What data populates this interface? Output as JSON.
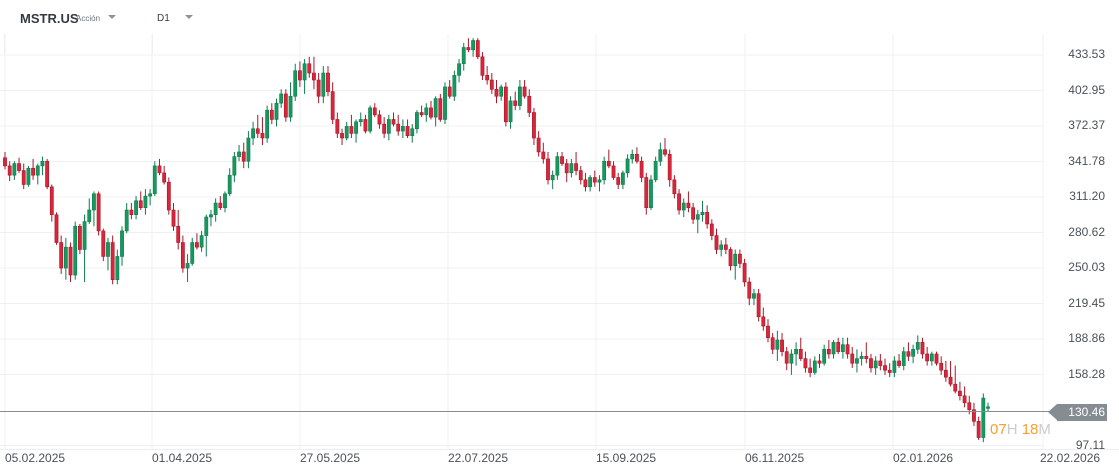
{
  "header": {
    "symbol": "MSTR.US",
    "asset_type": "Acción",
    "timeframe": "D1"
  },
  "price_axis": {
    "labels": [
      "433.53",
      "402.95",
      "372.37",
      "341.78",
      "311.20",
      "280.62",
      "250.03",
      "219.45",
      "188.86",
      "158.28",
      "97.11"
    ],
    "current_price": "130.46"
  },
  "time_axis": {
    "labels": [
      "05.02.2025",
      "01.04.2025",
      "27.05.2025",
      "22.07.2025",
      "15.09.2025",
      "06.11.2025",
      "02.01.2026",
      "22.02.2026"
    ]
  },
  "countdown": {
    "hours": "07",
    "hours_unit": "H",
    "minutes": "18",
    "minutes_unit": "M"
  },
  "colors": {
    "up": "#0f7b4f",
    "up_fill": "#16995f",
    "down": "#a8172a",
    "down_fill": "#d9263a",
    "grid": "#f0f0f0",
    "price_line": "#858c92",
    "countdown": "#f7a12a"
  },
  "chart_data": {
    "type": "candlestick",
    "title": "MSTR.US Acción D1",
    "xlabel": "",
    "ylabel": "",
    "ylim": [
      97.11,
      450
    ],
    "grid": true,
    "current_price": 130.46,
    "x_ticks": [
      "05.02.2025",
      "01.04.2025",
      "27.05.2025",
      "22.07.2025",
      "15.09.2025",
      "06.11.2025",
      "02.01.2026",
      "22.02.2026"
    ],
    "y_ticks": [
      97.11,
      158.28,
      188.86,
      219.45,
      250.03,
      280.62,
      311.2,
      341.78,
      372.37,
      402.95,
      433.53
    ],
    "ohlc": [
      [
        345,
        350,
        335,
        338
      ],
      [
        338,
        342,
        325,
        330
      ],
      [
        330,
        342,
        326,
        340
      ],
      [
        340,
        345,
        332,
        334
      ],
      [
        334,
        340,
        318,
        322
      ],
      [
        322,
        338,
        320,
        336
      ],
      [
        336,
        344,
        326,
        330
      ],
      [
        330,
        340,
        322,
        338
      ],
      [
        338,
        346,
        330,
        342
      ],
      [
        342,
        344,
        318,
        320
      ],
      [
        320,
        322,
        290,
        296
      ],
      [
        296,
        298,
        270,
        272
      ],
      [
        272,
        278,
        245,
        250
      ],
      [
        250,
        276,
        240,
        268
      ],
      [
        268,
        272,
        238,
        244
      ],
      [
        244,
        290,
        240,
        286
      ],
      [
        286,
        288,
        262,
        266
      ],
      [
        266,
        296,
        238,
        290
      ],
      [
        290,
        310,
        288,
        300
      ],
      [
        300,
        316,
        286,
        314
      ],
      [
        314,
        316,
        278,
        282
      ],
      [
        282,
        284,
        256,
        260
      ],
      [
        260,
        276,
        248,
        272
      ],
      [
        272,
        278,
        236,
        240
      ],
      [
        240,
        266,
        236,
        260
      ],
      [
        260,
        286,
        252,
        282
      ],
      [
        282,
        306,
        280,
        300
      ],
      [
        300,
        306,
        292,
        296
      ],
      [
        296,
        312,
        292,
        308
      ],
      [
        308,
        316,
        300,
        302
      ],
      [
        302,
        318,
        296,
        312
      ],
      [
        312,
        318,
        304,
        314
      ],
      [
        314,
        342,
        312,
        338
      ],
      [
        338,
        344,
        330,
        332
      ],
      [
        332,
        338,
        322,
        324
      ],
      [
        324,
        328,
        296,
        300
      ],
      [
        300,
        306,
        282,
        286
      ],
      [
        286,
        300,
        266,
        272
      ],
      [
        272,
        278,
        246,
        250
      ],
      [
        250,
        262,
        238,
        254
      ],
      [
        254,
        276,
        252,
        272
      ],
      [
        272,
        280,
        266,
        268
      ],
      [
        268,
        282,
        264,
        278
      ],
      [
        278,
        296,
        260,
        294
      ],
      [
        294,
        300,
        286,
        296
      ],
      [
        296,
        310,
        290,
        306
      ],
      [
        306,
        312,
        300,
        302
      ],
      [
        302,
        316,
        298,
        314
      ],
      [
        314,
        336,
        312,
        330
      ],
      [
        330,
        350,
        324,
        346
      ],
      [
        346,
        356,
        342,
        350
      ],
      [
        350,
        358,
        336,
        342
      ],
      [
        342,
        368,
        336,
        362
      ],
      [
        362,
        376,
        356,
        370
      ],
      [
        370,
        382,
        362,
        366
      ],
      [
        366,
        380,
        356,
        362
      ],
      [
        362,
        390,
        358,
        386
      ],
      [
        386,
        392,
        374,
        378
      ],
      [
        378,
        396,
        372,
        392
      ],
      [
        392,
        404,
        388,
        400
      ],
      [
        400,
        404,
        376,
        380
      ],
      [
        380,
        410,
        376,
        398
      ],
      [
        398,
        426,
        394,
        420
      ],
      [
        420,
        428,
        406,
        412
      ],
      [
        412,
        430,
        400,
        426
      ],
      [
        426,
        432,
        414,
        418
      ],
      [
        418,
        432,
        404,
        412
      ],
      [
        412,
        418,
        392,
        398
      ],
      [
        398,
        424,
        392,
        418
      ],
      [
        418,
        424,
        398,
        402
      ],
      [
        402,
        410,
        374,
        378
      ],
      [
        378,
        384,
        362,
        366
      ],
      [
        366,
        370,
        356,
        362
      ],
      [
        362,
        376,
        360,
        372
      ],
      [
        372,
        382,
        362,
        366
      ],
      [
        366,
        378,
        358,
        376
      ],
      [
        376,
        384,
        372,
        378
      ],
      [
        378,
        382,
        366,
        368
      ],
      [
        368,
        390,
        366,
        388
      ],
      [
        388,
        392,
        380,
        382
      ],
      [
        382,
        386,
        370,
        374
      ],
      [
        374,
        380,
        362,
        366
      ],
      [
        366,
        382,
        360,
        378
      ],
      [
        378,
        384,
        372,
        374
      ],
      [
        374,
        382,
        364,
        368
      ],
      [
        368,
        378,
        362,
        372
      ],
      [
        372,
        378,
        362,
        364
      ],
      [
        364,
        374,
        358,
        370
      ],
      [
        370,
        386,
        366,
        384
      ],
      [
        384,
        390,
        380,
        382
      ],
      [
        382,
        392,
        376,
        388
      ],
      [
        388,
        394,
        378,
        380
      ],
      [
        380,
        398,
        372,
        396
      ],
      [
        396,
        400,
        376,
        378
      ],
      [
        378,
        410,
        374,
        406
      ],
      [
        406,
        412,
        396,
        398
      ],
      [
        398,
        420,
        394,
        416
      ],
      [
        416,
        430,
        410,
        426
      ],
      [
        426,
        444,
        420,
        440
      ],
      [
        440,
        448,
        436,
        438
      ],
      [
        438,
        448,
        432,
        446
      ],
      [
        446,
        448,
        430,
        432
      ],
      [
        432,
        436,
        412,
        416
      ],
      [
        416,
        424,
        408,
        412
      ],
      [
        412,
        418,
        400,
        404
      ],
      [
        404,
        412,
        392,
        398
      ],
      [
        398,
        408,
        394,
        406
      ],
      [
        406,
        410,
        372,
        376
      ],
      [
        376,
        398,
        370,
        394
      ],
      [
        394,
        402,
        386,
        390
      ],
      [
        390,
        412,
        386,
        406
      ],
      [
        406,
        412,
        396,
        398
      ],
      [
        398,
        404,
        380,
        384
      ],
      [
        384,
        388,
        356,
        362
      ],
      [
        362,
        368,
        346,
        350
      ],
      [
        350,
        358,
        340,
        344
      ],
      [
        344,
        350,
        322,
        326
      ],
      [
        326,
        334,
        318,
        330
      ],
      [
        330,
        350,
        326,
        346
      ],
      [
        346,
        350,
        338,
        340
      ],
      [
        340,
        344,
        324,
        332
      ],
      [
        332,
        344,
        328,
        340
      ],
      [
        340,
        350,
        330,
        334
      ],
      [
        334,
        338,
        322,
        326
      ],
      [
        326,
        332,
        316,
        320
      ],
      [
        320,
        330,
        316,
        328
      ],
      [
        328,
        334,
        320,
        324
      ],
      [
        324,
        330,
        316,
        326
      ],
      [
        326,
        346,
        322,
        342
      ],
      [
        342,
        352,
        336,
        338
      ],
      [
        338,
        342,
        326,
        328
      ],
      [
        328,
        332,
        318,
        322
      ],
      [
        322,
        334,
        318,
        332
      ],
      [
        332,
        348,
        328,
        344
      ],
      [
        344,
        352,
        340,
        348
      ],
      [
        348,
        354,
        340,
        342
      ],
      [
        342,
        346,
        324,
        328
      ],
      [
        328,
        332,
        296,
        302
      ],
      [
        302,
        330,
        300,
        326
      ],
      [
        326,
        346,
        324,
        342
      ],
      [
        342,
        358,
        338,
        352
      ],
      [
        352,
        362,
        346,
        348
      ],
      [
        348,
        352,
        320,
        326
      ],
      [
        326,
        330,
        310,
        314
      ],
      [
        314,
        318,
        296,
        300
      ],
      [
        300,
        310,
        294,
        306
      ],
      [
        306,
        316,
        298,
        302
      ],
      [
        302,
        306,
        288,
        292
      ],
      [
        292,
        300,
        280,
        296
      ],
      [
        296,
        308,
        290,
        298
      ],
      [
        298,
        304,
        284,
        288
      ],
      [
        288,
        292,
        274,
        278
      ],
      [
        278,
        284,
        262,
        266
      ],
      [
        266,
        274,
        260,
        270
      ],
      [
        270,
        276,
        262,
        266
      ],
      [
        266,
        268,
        248,
        252
      ],
      [
        252,
        266,
        240,
        262
      ],
      [
        262,
        266,
        250,
        254
      ],
      [
        254,
        258,
        234,
        238
      ],
      [
        238,
        242,
        218,
        224
      ],
      [
        224,
        232,
        218,
        228
      ],
      [
        228,
        232,
        204,
        208
      ],
      [
        208,
        216,
        196,
        200
      ],
      [
        200,
        206,
        186,
        190
      ],
      [
        190,
        194,
        176,
        180
      ],
      [
        180,
        196,
        170,
        188
      ],
      [
        188,
        194,
        174,
        178
      ],
      [
        178,
        182,
        162,
        168
      ],
      [
        168,
        180,
        158,
        176
      ],
      [
        176,
        186,
        166,
        180
      ],
      [
        180,
        190,
        170,
        172
      ],
      [
        172,
        178,
        160,
        164
      ],
      [
        164,
        172,
        156,
        160
      ],
      [
        160,
        174,
        158,
        170
      ],
      [
        170,
        176,
        164,
        168
      ],
      [
        168,
        184,
        166,
        180
      ],
      [
        180,
        188,
        172,
        176
      ],
      [
        176,
        188,
        172,
        186
      ],
      [
        186,
        190,
        176,
        178
      ],
      [
        178,
        190,
        172,
        184
      ],
      [
        184,
        190,
        172,
        176
      ],
      [
        176,
        182,
        164,
        168
      ],
      [
        168,
        180,
        160,
        172
      ],
      [
        172,
        178,
        166,
        174
      ],
      [
        174,
        186,
        168,
        172
      ],
      [
        172,
        176,
        160,
        164
      ],
      [
        164,
        174,
        158,
        170
      ],
      [
        170,
        176,
        162,
        166
      ],
      [
        166,
        172,
        158,
        162
      ],
      [
        162,
        168,
        156,
        160
      ],
      [
        160,
        174,
        156,
        170
      ],
      [
        170,
        176,
        164,
        166
      ],
      [
        166,
        182,
        162,
        178
      ],
      [
        178,
        186,
        170,
        174
      ],
      [
        174,
        184,
        168,
        180
      ],
      [
        180,
        192,
        176,
        186
      ],
      [
        186,
        190,
        172,
        176
      ],
      [
        176,
        182,
        166,
        170
      ],
      [
        170,
        178,
        166,
        176
      ],
      [
        176,
        178,
        166,
        168
      ],
      [
        168,
        174,
        158,
        162
      ],
      [
        162,
        170,
        152,
        156
      ],
      [
        156,
        170,
        148,
        150
      ],
      [
        150,
        166,
        142,
        144
      ],
      [
        144,
        152,
        136,
        140
      ],
      [
        140,
        148,
        130,
        134
      ],
      [
        134,
        140,
        124,
        128
      ],
      [
        128,
        134,
        114,
        118
      ],
      [
        118,
        122,
        102,
        104
      ],
      [
        104,
        142,
        100,
        138
      ],
      [
        130,
        134,
        126,
        130.46
      ]
    ]
  }
}
